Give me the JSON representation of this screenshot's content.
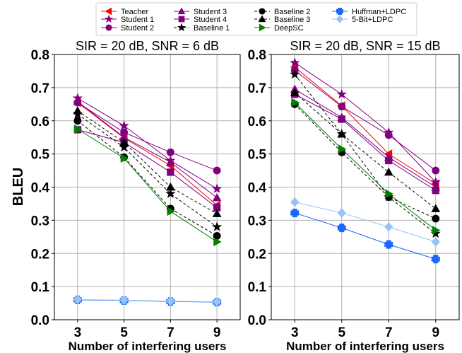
{
  "chart_data": {
    "type": "line",
    "legend": {
      "placement": "top-center",
      "columns": 4,
      "entries": [
        "Teacher",
        "Student 1",
        "Student 2",
        "Student 3",
        "Student 4",
        "Baseline 1",
        "Baseline 2",
        "Baseline 3",
        "DeepSC",
        "Huffman+LDPC",
        "5-Bit+LDPC"
      ]
    },
    "series_styles": [
      {
        "name": "Teacher",
        "color": "#ff0000",
        "marker": "triangle-left",
        "dash": "solid"
      },
      {
        "name": "Student 1",
        "color": "#800080",
        "marker": "star",
        "dash": "solid"
      },
      {
        "name": "Student 2",
        "color": "#800080",
        "marker": "circle",
        "dash": "solid"
      },
      {
        "name": "Student 3",
        "color": "#800080",
        "marker": "triangle-up",
        "dash": "solid"
      },
      {
        "name": "Student 4",
        "color": "#800080",
        "marker": "square",
        "dash": "solid"
      },
      {
        "name": "Baseline 1",
        "color": "#000000",
        "marker": "star",
        "dash": "dashed"
      },
      {
        "name": "Baseline 2",
        "color": "#000000",
        "marker": "circle",
        "dash": "dashed"
      },
      {
        "name": "Baseline 3",
        "color": "#000000",
        "marker": "triangle-up",
        "dash": "dashed"
      },
      {
        "name": "DeepSC",
        "color": "#008000",
        "marker": "triangle-right",
        "dash": "solid"
      },
      {
        "name": "Huffman+LDPC",
        "color": "#1a66ff",
        "marker": "plus",
        "dash": "solid"
      },
      {
        "name": "5-Bit+LDPC",
        "color": "#99c2f5",
        "marker": "diamond",
        "dash": "solid"
      }
    ],
    "ylabel": "BLEU",
    "panels": [
      {
        "title": "SIR = 20 dB, SNR = 6 dB",
        "xlabel": "Number of interfering users",
        "x": [
          3,
          5,
          7,
          9
        ],
        "xlim": [
          2,
          10
        ],
        "ylim": [
          0,
          0.8
        ],
        "yticks": [
          0.0,
          0.1,
          0.2,
          0.3,
          0.4,
          0.5,
          0.6,
          0.7,
          0.8
        ],
        "ytick_labels": [
          "0.0",
          "0.1",
          "0.2",
          "0.3",
          "0.4",
          "0.5",
          "0.6",
          "0.7",
          "0.8"
        ],
        "xtick_labels": [
          "3",
          "5",
          "7",
          "9"
        ],
        "grid": true,
        "series": [
          {
            "name": "Teacher",
            "values": [
              0.655,
              0.548,
              0.465,
              0.345
            ]
          },
          {
            "name": "Student 1",
            "values": [
              0.668,
              0.585,
              0.48,
              0.395
            ]
          },
          {
            "name": "Student 2",
            "values": [
              0.655,
              0.565,
              0.505,
              0.45
            ]
          },
          {
            "name": "Student 3",
            "values": [
              0.658,
              0.55,
              0.475,
              0.368
            ]
          },
          {
            "name": "Student 4",
            "values": [
              0.573,
              0.535,
              0.445,
              0.338
            ]
          },
          {
            "name": "Baseline 1",
            "values": [
              0.62,
              0.52,
              0.38,
              0.28
            ]
          },
          {
            "name": "Baseline 2",
            "values": [
              0.6,
              0.49,
              0.335,
              0.253
            ]
          },
          {
            "name": "Baseline 3",
            "values": [
              0.63,
              0.535,
              0.4,
              0.32
            ]
          },
          {
            "name": "DeepSC",
            "values": [
              0.575,
              0.487,
              0.327,
              0.235
            ]
          },
          {
            "name": "Huffman+LDPC",
            "values": [
              0.06,
              0.058,
              0.055,
              0.053
            ]
          },
          {
            "name": "5-Bit+LDPC",
            "values": [
              0.061,
              0.059,
              0.056,
              0.054
            ]
          }
        ]
      },
      {
        "title": "SIR = 20 dB, SNR = 15 dB",
        "xlabel": "Number of interfering users",
        "x": [
          3,
          5,
          7,
          9
        ],
        "xlim": [
          2,
          10
        ],
        "ylim": [
          0,
          0.8
        ],
        "yticks": [
          0.0,
          0.1,
          0.2,
          0.3,
          0.4,
          0.5,
          0.6,
          0.7,
          0.8
        ],
        "ytick_labels": [
          "0.0",
          "0.1",
          "0.2",
          "0.3",
          "0.4",
          "0.5",
          "0.6",
          "0.7",
          "0.8"
        ],
        "xtick_labels": [
          "3",
          "5",
          "7",
          "9"
        ],
        "grid": true,
        "series": [
          {
            "name": "Teacher",
            "values": [
              0.762,
              0.645,
              0.5,
              0.41
            ]
          },
          {
            "name": "Student 1",
            "values": [
              0.775,
              0.68,
              0.565,
              0.415
            ]
          },
          {
            "name": "Student 2",
            "values": [
              0.752,
              0.643,
              0.557,
              0.45
            ]
          },
          {
            "name": "Student 3",
            "values": [
              0.695,
              0.61,
              0.49,
              0.4
            ]
          },
          {
            "name": "Student 4",
            "values": [
              0.68,
              0.605,
              0.48,
              0.39
            ]
          },
          {
            "name": "Baseline 1",
            "values": [
              0.74,
              0.56,
              0.37,
              0.26
            ]
          },
          {
            "name": "Baseline 2",
            "values": [
              0.65,
              0.505,
              0.37,
              0.305
            ]
          },
          {
            "name": "Baseline 3",
            "values": [
              0.685,
              0.56,
              0.445,
              0.335
            ]
          },
          {
            "name": "DeepSC",
            "values": [
              0.655,
              0.515,
              0.38,
              0.27
            ]
          },
          {
            "name": "Huffman+LDPC",
            "values": [
              0.322,
              0.277,
              0.227,
              0.183
            ]
          },
          {
            "name": "5-Bit+LDPC",
            "values": [
              0.355,
              0.322,
              0.28,
              0.235
            ]
          }
        ]
      }
    ]
  }
}
